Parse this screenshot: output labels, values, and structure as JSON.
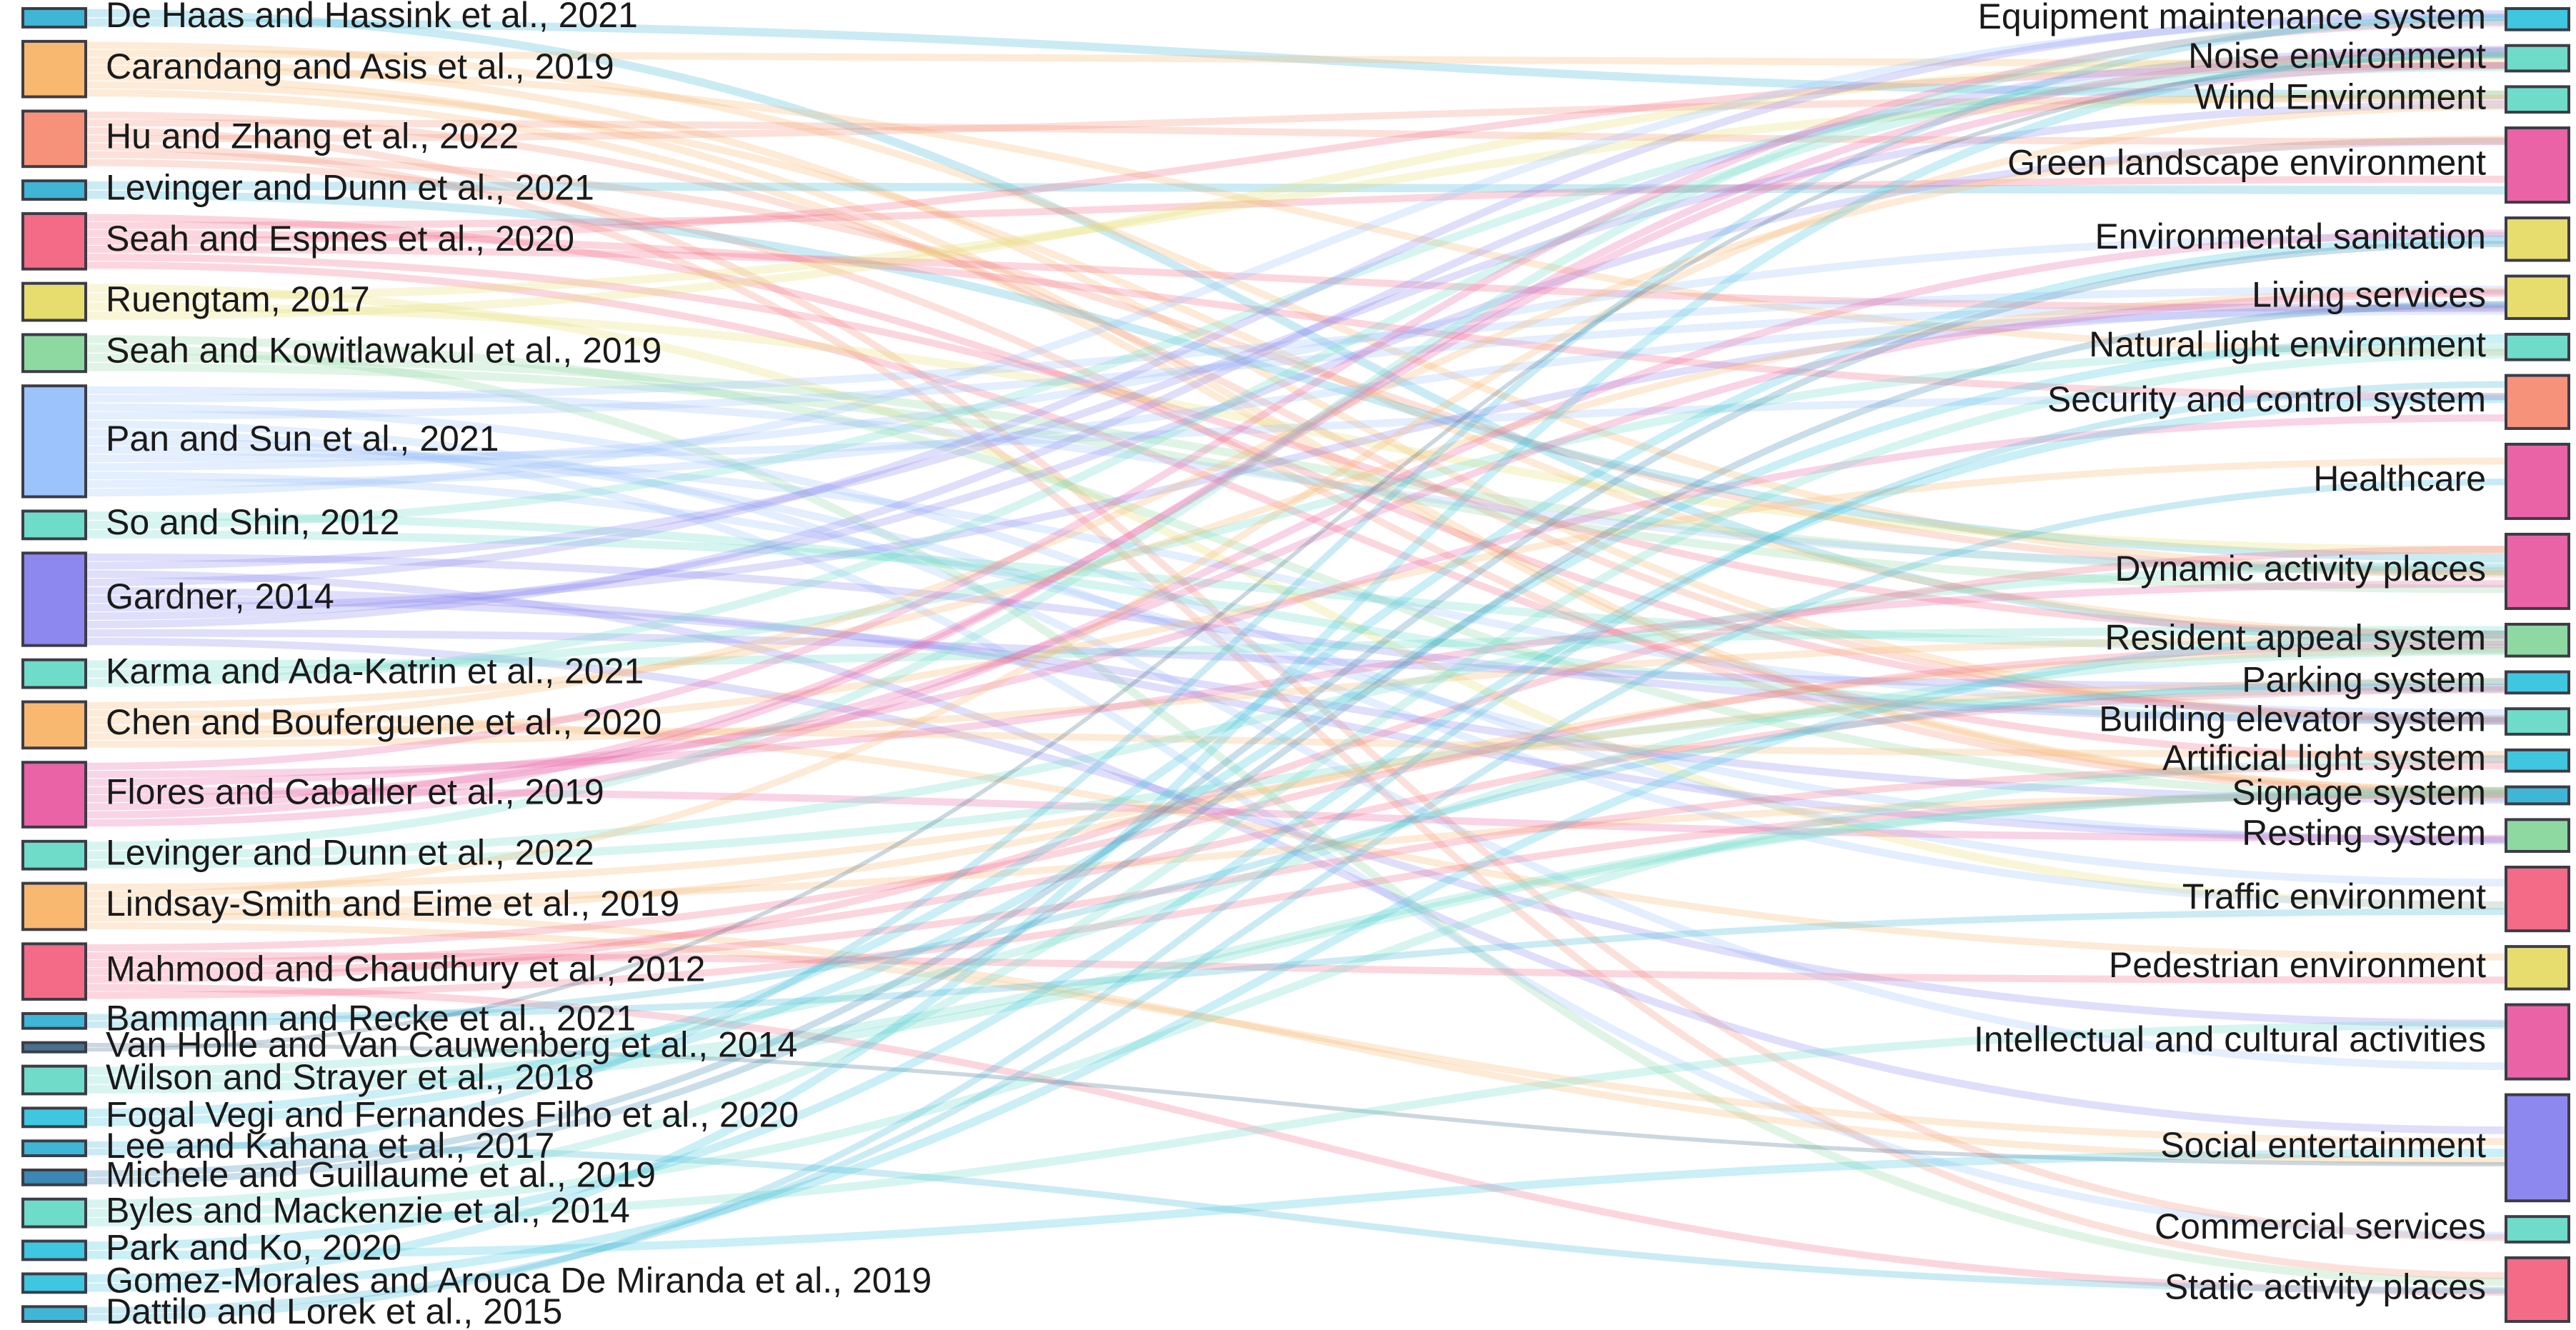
{
  "chart_data": {
    "type": "sankey",
    "sources": [
      {
        "id": "s0",
        "label": "De Haas and Hassink et al., 2021",
        "color": "#3fb6d6",
        "weight": 1
      },
      {
        "id": "s1",
        "label": "Carandang and Asis et al., 2019",
        "color": "#f9b870",
        "weight": 3
      },
      {
        "id": "s2",
        "label": "Hu and Zhang et al., 2022",
        "color": "#f6927a",
        "weight": 3
      },
      {
        "id": "s3",
        "label": "Levinger and Dunn et al., 2021",
        "color": "#3fb6d6",
        "weight": 1
      },
      {
        "id": "s4",
        "label": "Seah and Espnes et al., 2020",
        "color": "#f36b87",
        "weight": 3
      },
      {
        "id": "s5",
        "label": "Ruengtam, 2017",
        "color": "#e6dd6e",
        "weight": 2
      },
      {
        "id": "s6",
        "label": "Seah and Kowitlawakul et al., 2019",
        "color": "#8ed9a2",
        "weight": 2
      },
      {
        "id": "s7",
        "label": "Pan and Sun et al., 2021",
        "color": "#9cc3fb",
        "weight": 6
      },
      {
        "id": "s8",
        "label": "So and Shin, 2012",
        "color": "#6fdcc9",
        "weight": 1.5
      },
      {
        "id": "s9",
        "label": "Gardner, 2014",
        "color": "#8d88ef",
        "weight": 5
      },
      {
        "id": "s10",
        "label": "Karma and Ada-Katrin et al., 2021",
        "color": "#6fdcc9",
        "weight": 1.5
      },
      {
        "id": "s11",
        "label": "Chen and Bouferguene et al., 2020",
        "color": "#f9b870",
        "weight": 2.5
      },
      {
        "id": "s12",
        "label": "Flores and Caballer et al., 2019",
        "color": "#ea63a6",
        "weight": 3.5
      },
      {
        "id": "s13",
        "label": "Levinger and Dunn et al., 2022",
        "color": "#6fdcc9",
        "weight": 1.5
      },
      {
        "id": "s14",
        "label": "Lindsay-Smith and Eime et al., 2019",
        "color": "#f9b870",
        "weight": 2.5
      },
      {
        "id": "s15",
        "label": "Mahmood and Chaudhury et al., 2012",
        "color": "#f36b87",
        "weight": 3
      },
      {
        "id": "s16",
        "label": "Bammann and Recke et al., 2021",
        "color": "#3fb6d6",
        "weight": 0.8
      },
      {
        "id": "s17",
        "label": "Van Holle and Van Cauwenberg et al., 2014",
        "color": "#46708c",
        "weight": 0.5
      },
      {
        "id": "s18",
        "label": "Wilson and Strayer et al., 2018",
        "color": "#6fdcc9",
        "weight": 1.5
      },
      {
        "id": "s19",
        "label": "Fogal Vegi and Fernandes Filho et al., 2020",
        "color": "#3fc6e0",
        "weight": 1
      },
      {
        "id": "s20",
        "label": "Lee and Kahana et al., 2017",
        "color": "#3fb6d6",
        "weight": 0.8
      },
      {
        "id": "s21",
        "label": "Michele and Guillaume et al., 2019",
        "color": "#3a88b3",
        "weight": 0.8
      },
      {
        "id": "s22",
        "label": "Byles and Mackenzie et al., 2014",
        "color": "#6fdcc9",
        "weight": 1.5
      },
      {
        "id": "s23",
        "label": "Park and Ko, 2020",
        "color": "#3fc6e0",
        "weight": 1
      },
      {
        "id": "s24",
        "label": "Gomez-Morales and Arouca De Miranda et al., 2019",
        "color": "#3fc6e0",
        "weight": 1
      },
      {
        "id": "s25",
        "label": "Dattilo and Lorek et al., 2015",
        "color": "#3fb6d6",
        "weight": 0.8
      }
    ],
    "targets": [
      {
        "id": "t0",
        "label": "Equipment maintenance system",
        "color": "#3fc6e0",
        "weight": 1
      },
      {
        "id": "t1",
        "label": "Noise environment",
        "color": "#6fdcc9",
        "weight": 1.2
      },
      {
        "id": "t2",
        "label": "Wind Environment",
        "color": "#6fdcc9",
        "weight": 1.2
      },
      {
        "id": "t3",
        "label": "Green landscape environment",
        "color": "#ea63a6",
        "weight": 3.5
      },
      {
        "id": "t4",
        "label": "Environmental sanitation",
        "color": "#e6dd6e",
        "weight": 2
      },
      {
        "id": "t5",
        "label": "Living services",
        "color": "#e6dd6e",
        "weight": 2
      },
      {
        "id": "t6",
        "label": "Natural light environment",
        "color": "#6fdcc9",
        "weight": 1.2
      },
      {
        "id": "t7",
        "label": "Security and control system",
        "color": "#f6927a",
        "weight": 2.5
      },
      {
        "id": "t8",
        "label": "Healthcare",
        "color": "#ea63a6",
        "weight": 3.5
      },
      {
        "id": "t9",
        "label": "Dynamic activity places",
        "color": "#ea63a6",
        "weight": 3.5
      },
      {
        "id": "t10",
        "label": "Resident appeal system",
        "color": "#8ed9a2",
        "weight": 1.5
      },
      {
        "id": "t11",
        "label": "Parking system",
        "color": "#3fc6e0",
        "weight": 1
      },
      {
        "id": "t12",
        "label": "Building elevator system",
        "color": "#6fdcc9",
        "weight": 1.2
      },
      {
        "id": "t13",
        "label": "Artificial light system",
        "color": "#3fc6e0",
        "weight": 1
      },
      {
        "id": "t14",
        "label": "Signage system",
        "color": "#3fb6d6",
        "weight": 0.8
      },
      {
        "id": "t15",
        "label": "Resting system",
        "color": "#8ed9a2",
        "weight": 1.5
      },
      {
        "id": "t16",
        "label": "Traffic environment",
        "color": "#f36b87",
        "weight": 3
      },
      {
        "id": "t17",
        "label": "Pedestrian environment",
        "color": "#e6dd6e",
        "weight": 2
      },
      {
        "id": "t18",
        "label": "Intellectual and cultural activities",
        "color": "#ea63a6",
        "weight": 3.5
      },
      {
        "id": "t19",
        "label": "Social entertainment",
        "color": "#8d88ef",
        "weight": 5
      },
      {
        "id": "t20",
        "label": "Commercial services",
        "color": "#6fdcc9",
        "weight": 1.2
      },
      {
        "id": "t21",
        "label": "Static activity places",
        "color": "#f36b87",
        "weight": 3
      }
    ],
    "link_opacity": 0.28,
    "link_seed": 7
  }
}
